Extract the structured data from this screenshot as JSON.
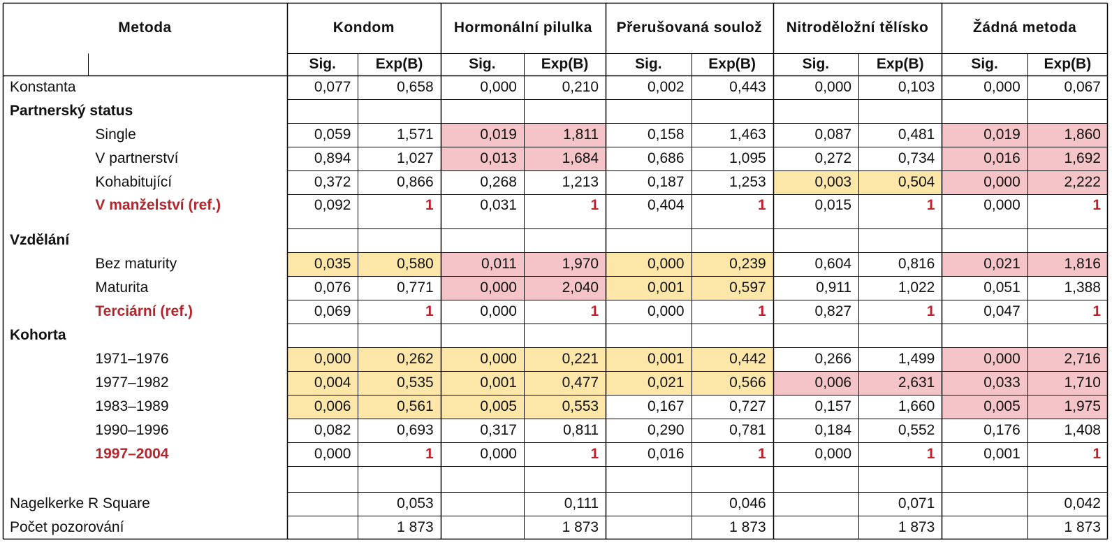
{
  "header": {
    "metoda": "Metoda",
    "groups": [
      "Kondom",
      "Hormonální pilulka",
      "Přerušovaná soulož",
      "Nitroděložní tělísko",
      "Žádná metoda"
    ],
    "sig": "Sig.",
    "expb": "Exp(B)"
  },
  "rows": [
    {
      "type": "data",
      "label": "Konstanta",
      "level": 0,
      "cells": [
        {
          "v": "0,077"
        },
        {
          "v": "0,658"
        },
        {
          "v": "0,000"
        },
        {
          "v": "0,210"
        },
        {
          "v": "0,002"
        },
        {
          "v": "0,443"
        },
        {
          "v": "0,000"
        },
        {
          "v": "0,103"
        },
        {
          "v": "0,000"
        },
        {
          "v": "0,067"
        }
      ]
    },
    {
      "type": "group",
      "label": "Partnerský status"
    },
    {
      "type": "data",
      "label": "Single",
      "level": 1,
      "cells": [
        {
          "v": "0,059"
        },
        {
          "v": "1,571"
        },
        {
          "v": "0,019",
          "h": "pink"
        },
        {
          "v": "1,811",
          "h": "pink"
        },
        {
          "v": "0,158"
        },
        {
          "v": "1,463"
        },
        {
          "v": "0,087"
        },
        {
          "v": "0,481"
        },
        {
          "v": "0,019",
          "h": "pink"
        },
        {
          "v": "1,860",
          "h": "pink"
        }
      ]
    },
    {
      "type": "data",
      "label": "V partnerství",
      "level": 1,
      "cells": [
        {
          "v": "0,894"
        },
        {
          "v": "1,027"
        },
        {
          "v": "0,013",
          "h": "pink"
        },
        {
          "v": "1,684",
          "h": "pink"
        },
        {
          "v": "0,686"
        },
        {
          "v": "1,095"
        },
        {
          "v": "0,272"
        },
        {
          "v": "0,734"
        },
        {
          "v": "0,016",
          "h": "pink"
        },
        {
          "v": "1,692",
          "h": "pink"
        }
      ]
    },
    {
      "type": "data",
      "label": "Kohabitující",
      "level": 1,
      "cells": [
        {
          "v": "0,372"
        },
        {
          "v": "0,866"
        },
        {
          "v": "0,268"
        },
        {
          "v": "1,213"
        },
        {
          "v": "0,187"
        },
        {
          "v": "1,253"
        },
        {
          "v": "0,003",
          "h": "yellow"
        },
        {
          "v": "0,504",
          "h": "yellow"
        },
        {
          "v": "0,000",
          "h": "pink"
        },
        {
          "v": "2,222",
          "h": "pink"
        }
      ]
    },
    {
      "type": "data",
      "label": "V manželství (ref.)",
      "level": 1,
      "ref": true,
      "gap": true,
      "cells": [
        {
          "v": "0,092"
        },
        {
          "v": "1",
          "r": true
        },
        {
          "v": "0,031"
        },
        {
          "v": "1",
          "r": true
        },
        {
          "v": "0,404"
        },
        {
          "v": "1",
          "r": true
        },
        {
          "v": "0,015"
        },
        {
          "v": "1",
          "r": true
        },
        {
          "v": "0,000"
        },
        {
          "v": "1",
          "r": true
        }
      ]
    },
    {
      "type": "group",
      "label": "Vzdělání"
    },
    {
      "type": "data",
      "label": "Bez maturity",
      "level": 1,
      "cells": [
        {
          "v": "0,035",
          "h": "yellow"
        },
        {
          "v": "0,580",
          "h": "yellow"
        },
        {
          "v": "0,011",
          "h": "pink"
        },
        {
          "v": "1,970",
          "h": "pink"
        },
        {
          "v": "0,000",
          "h": "yellow"
        },
        {
          "v": "0,239",
          "h": "yellow"
        },
        {
          "v": "0,604"
        },
        {
          "v": "0,816"
        },
        {
          "v": "0,021",
          "h": "pink"
        },
        {
          "v": "1,816",
          "h": "pink"
        }
      ]
    },
    {
      "type": "data",
      "label": "Maturita",
      "level": 1,
      "cells": [
        {
          "v": "0,076"
        },
        {
          "v": "0,771"
        },
        {
          "v": "0,000",
          "h": "pink"
        },
        {
          "v": "2,040",
          "h": "pink"
        },
        {
          "v": "0,001",
          "h": "yellow"
        },
        {
          "v": "0,597",
          "h": "yellow"
        },
        {
          "v": "0,911"
        },
        {
          "v": "1,022"
        },
        {
          "v": "0,051"
        },
        {
          "v": "1,388"
        }
      ]
    },
    {
      "type": "data",
      "label": "Terciární (ref.)",
      "level": 1,
      "ref": true,
      "cells": [
        {
          "v": "0,069"
        },
        {
          "v": "1",
          "r": true
        },
        {
          "v": "0,000"
        },
        {
          "v": "1",
          "r": true
        },
        {
          "v": "0,000"
        },
        {
          "v": "1",
          "r": true
        },
        {
          "v": "0,827"
        },
        {
          "v": "1",
          "r": true
        },
        {
          "v": "0,047"
        },
        {
          "v": "1",
          "r": true
        }
      ]
    },
    {
      "type": "group",
      "label": "Kohorta"
    },
    {
      "type": "data",
      "label": "1971–1976",
      "level": 1,
      "cells": [
        {
          "v": "0,000",
          "h": "yellow"
        },
        {
          "v": "0,262",
          "h": "yellow"
        },
        {
          "v": "0,000",
          "h": "yellow"
        },
        {
          "v": "0,221",
          "h": "yellow"
        },
        {
          "v": "0,001",
          "h": "yellow"
        },
        {
          "v": "0,442",
          "h": "yellow"
        },
        {
          "v": "0,266"
        },
        {
          "v": "1,499"
        },
        {
          "v": "0,000",
          "h": "pink"
        },
        {
          "v": "2,716",
          "h": "pink"
        }
      ]
    },
    {
      "type": "data",
      "label": "1977–1982",
      "level": 1,
      "cells": [
        {
          "v": "0,004",
          "h": "yellow"
        },
        {
          "v": "0,535",
          "h": "yellow"
        },
        {
          "v": "0,001",
          "h": "yellow"
        },
        {
          "v": "0,477",
          "h": "yellow"
        },
        {
          "v": "0,021",
          "h": "yellow"
        },
        {
          "v": "0,566",
          "h": "yellow"
        },
        {
          "v": "0,006",
          "h": "pink"
        },
        {
          "v": "2,631",
          "h": "pink"
        },
        {
          "v": "0,033",
          "h": "pink"
        },
        {
          "v": "1,710",
          "h": "pink"
        }
      ]
    },
    {
      "type": "data",
      "label": "1983–1989",
      "level": 1,
      "cells": [
        {
          "v": "0,006",
          "h": "yellow"
        },
        {
          "v": "0,561",
          "h": "yellow"
        },
        {
          "v": "0,005",
          "h": "yellow"
        },
        {
          "v": "0,553",
          "h": "yellow"
        },
        {
          "v": "0,167"
        },
        {
          "v": "0,727"
        },
        {
          "v": "0,157"
        },
        {
          "v": "1,660"
        },
        {
          "v": "0,005",
          "h": "pink"
        },
        {
          "v": "1,975",
          "h": "pink"
        }
      ]
    },
    {
      "type": "data",
      "label": "1990–1996",
      "level": 1,
      "cells": [
        {
          "v": "0,082"
        },
        {
          "v": "0,693"
        },
        {
          "v": "0,317"
        },
        {
          "v": "0,811"
        },
        {
          "v": "0,290"
        },
        {
          "v": "0,781"
        },
        {
          "v": "0,184"
        },
        {
          "v": "0,552"
        },
        {
          "v": "0,176"
        },
        {
          "v": "1,408"
        }
      ]
    },
    {
      "type": "data",
      "label": "1997–2004",
      "level": 1,
      "ref": true,
      "cells": [
        {
          "v": "0,000"
        },
        {
          "v": "1",
          "r": true
        },
        {
          "v": "0,000"
        },
        {
          "v": "1",
          "r": true
        },
        {
          "v": "0,016"
        },
        {
          "v": "1",
          "r": true
        },
        {
          "v": "0,000"
        },
        {
          "v": "1",
          "r": true
        },
        {
          "v": "0,001"
        },
        {
          "v": "1",
          "r": true
        }
      ]
    },
    {
      "type": "blank"
    },
    {
      "type": "footer",
      "label": "Nagelkerke R Square",
      "values": [
        "0,053",
        "0,111",
        "0,046",
        "0,071",
        "0,042"
      ]
    },
    {
      "type": "footer",
      "label": "Počet pozorování",
      "values": [
        "1 873",
        "1 873",
        "1 873",
        "1 873",
        "1 873"
      ]
    }
  ],
  "colors": {
    "pink": "#f4c4c8",
    "yellow": "#fde7a8",
    "ref_text": "#b5252c",
    "border": "#000000"
  }
}
